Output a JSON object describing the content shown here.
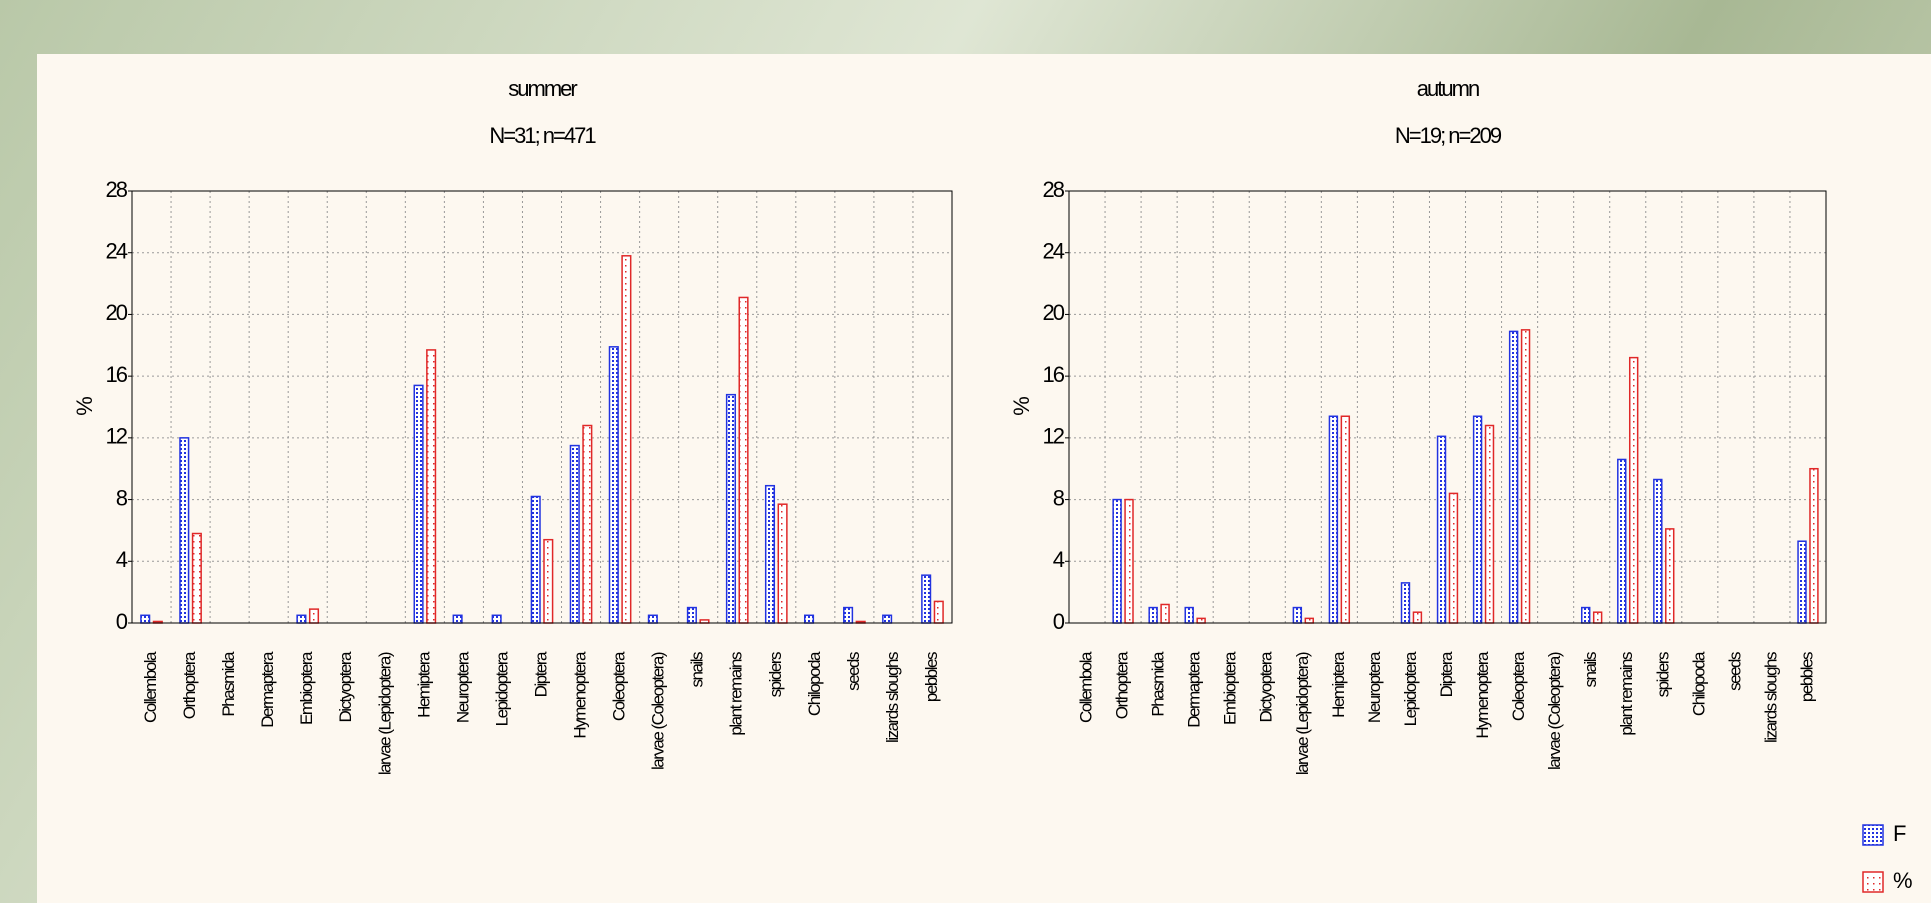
{
  "chart_data": [
    {
      "type": "bar",
      "title": "summer",
      "subtitle": "N=31; n=471",
      "y_label": "%",
      "categories": [
        "Collembola",
        "Orthoptera",
        "Phasmida",
        "Dermaptera",
        "Embioptera",
        "Dictyoptera",
        "larvae (Lepidoptera)",
        "Hemiptera",
        "Neuroptera",
        "Lepidoptera",
        "Diptera",
        "Hymenoptera",
        "Coleoptera",
        "larvae (Coleoptera)",
        "snails",
        "plant remains",
        "spiders",
        "Chilopoda",
        "seeds",
        "lizards sloughs",
        "pebbles"
      ],
      "series": [
        {
          "name": "F",
          "color": "#2233e0",
          "values": [
            0.5,
            12.0,
            0,
            0,
            0.5,
            0,
            0,
            15.4,
            0.5,
            0.5,
            8.2,
            11.5,
            17.9,
            0.5,
            1.0,
            14.8,
            8.9,
            0.5,
            1.0,
            0.5,
            3.1
          ]
        },
        {
          "name": "%",
          "color": "#e02828",
          "values": [
            0.1,
            5.8,
            0,
            0,
            0.9,
            0,
            0,
            17.7,
            0,
            0,
            5.4,
            12.8,
            23.8,
            0,
            0.2,
            21.1,
            7.7,
            0,
            0.1,
            0,
            1.4
          ]
        }
      ],
      "ylim": [
        0,
        28
      ],
      "yticks": [
        0,
        4,
        8,
        12,
        16,
        20,
        24,
        28
      ],
      "grid": true
    },
    {
      "type": "bar",
      "title": "autumn",
      "subtitle": "N=19; n=209",
      "y_label": "%",
      "categories": [
        "Collembola",
        "Orthoptera",
        "Phasmida",
        "Dermaptera",
        "Embioptera",
        "Dictyoptera",
        "larvae (Lepidoptera)",
        "Hemiptera",
        "Neuroptera",
        "Lepidoptera",
        "Diptera",
        "Hymenoptera",
        "Coleoptera",
        "larvae (Coleoptera)",
        "snails",
        "plant remains",
        "spiders",
        "Chilopoda",
        "seeds",
        "lizards sloughs",
        "pebbles"
      ],
      "series": [
        {
          "color": "#2233e0",
          "values": [
            0,
            8.0,
            1.0,
            1.0,
            0,
            0,
            1.0,
            13.4,
            0,
            2.6,
            12.1,
            13.4,
            18.9,
            0,
            1.0,
            10.6,
            9.3,
            0,
            0,
            0,
            5.3
          ]
        },
        {
          "color": "#e02828",
          "values": [
            0,
            8.0,
            1.2,
            0.3,
            0,
            0,
            0.3,
            13.4,
            0,
            0.7,
            8.4,
            12.8,
            19.0,
            0,
            0.7,
            17.2,
            6.1,
            0,
            0,
            0,
            10.0
          ]
        }
      ],
      "ylim": [
        0,
        28
      ],
      "yticks": [
        0,
        4,
        8,
        12,
        16,
        20,
        24,
        28
      ],
      "grid": true
    }
  ]
}
